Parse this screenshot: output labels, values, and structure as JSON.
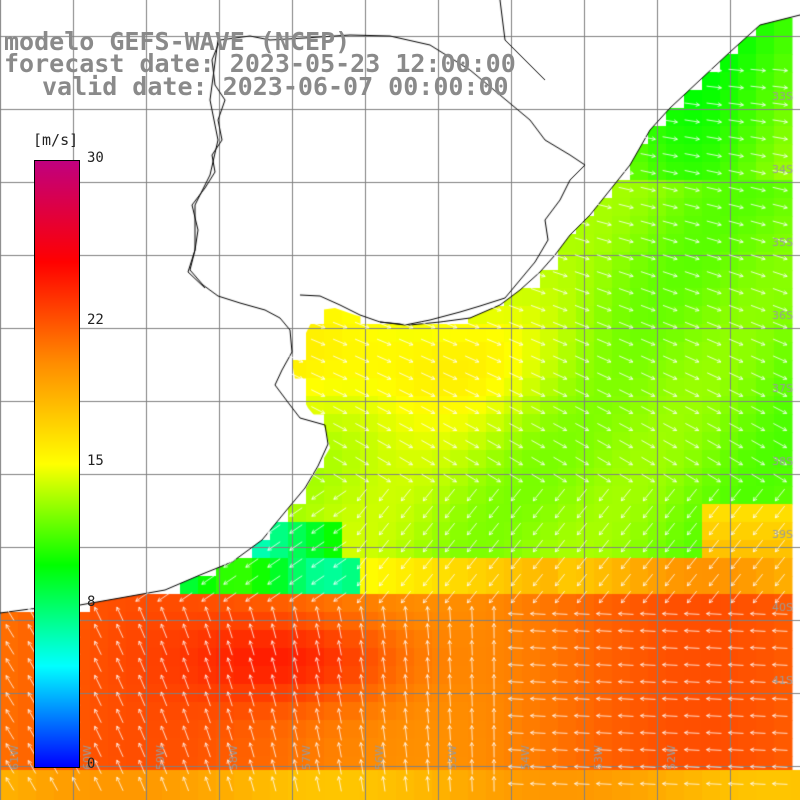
{
  "titles": {
    "model": "modelo GEFS-WAVE (NCEP)",
    "forecast": "forecast date: 2023-05-23 12:00:00",
    "valid": "valid date: 2023-06-07 00:00:00"
  },
  "colorbar": {
    "unit": "[m/s]",
    "ticks": [
      {
        "label": "30",
        "value": 30
      },
      {
        "label": "22",
        "value": 22
      },
      {
        "label": "15",
        "value": 15
      },
      {
        "label": "8",
        "value": 8
      },
      {
        "label": "0",
        "value": 0
      }
    ],
    "range": [
      0,
      30
    ],
    "colors": [
      "#0000ff",
      "#00ffff",
      "#00ff00",
      "#ffff00",
      "#ff8c00",
      "#ff0000",
      "#c0007f"
    ]
  },
  "map": {
    "lat_labels": [
      "33S",
      "34S",
      "35S",
      "36S",
      "37S",
      "38S",
      "39S",
      "40S",
      "41S"
    ],
    "lon_labels": [
      "61W",
      "60W",
      "59W",
      "58W",
      "57W",
      "56W",
      "55W",
      "54W",
      "53W",
      "52W"
    ],
    "land_color": "#ffffff",
    "grid_color": "#808080",
    "arrow_color": "#ffffff"
  }
}
